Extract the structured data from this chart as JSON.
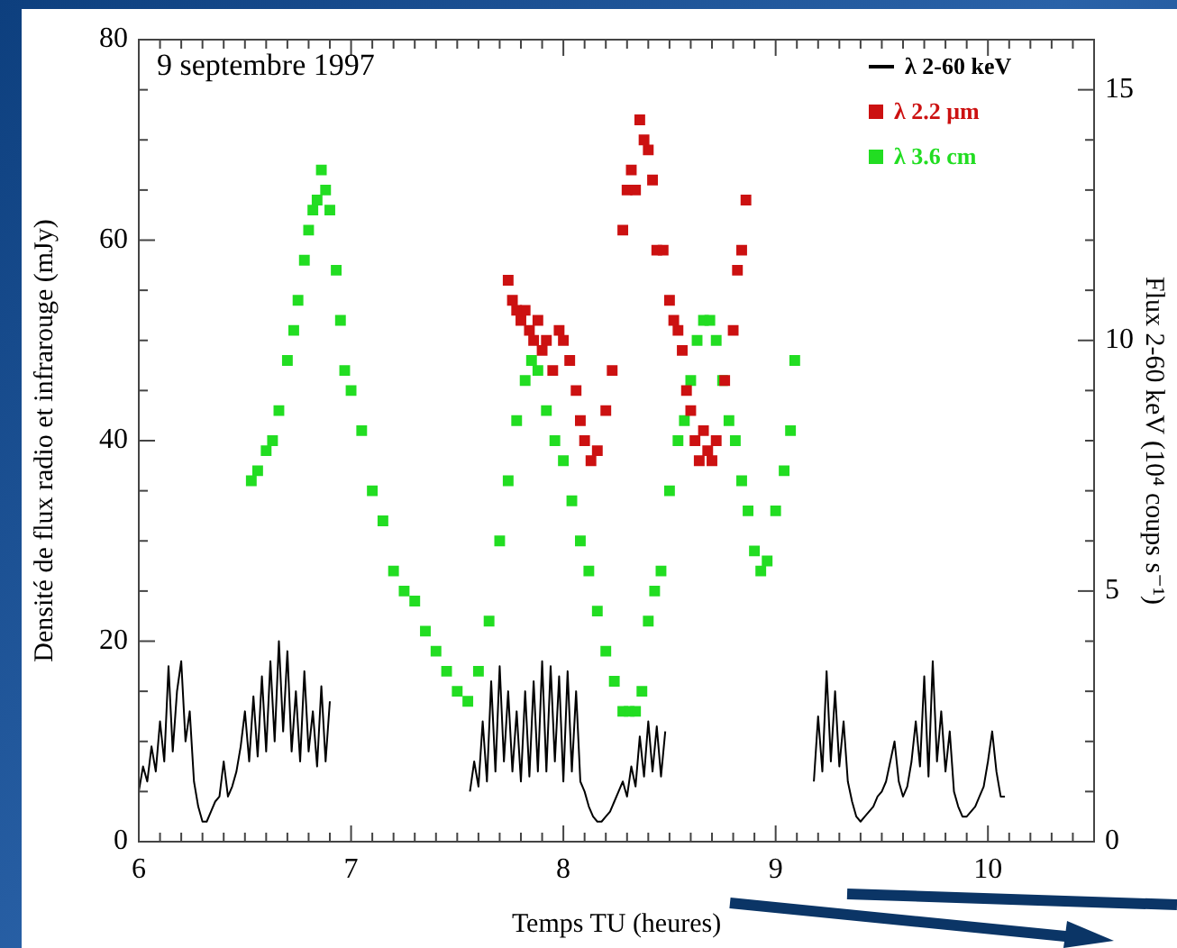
{
  "chart_data": {
    "type": "scatter",
    "title": "9 septembre 1997",
    "xlabel": "Temps TU (heures)",
    "ylabel": "Densité de flux radio et infrarouge (mJy)",
    "y2label": "Flux 2-60 keV (10⁴ coups s⁻¹)",
    "legend": "top right",
    "xlim": [
      6,
      10.5
    ],
    "xticks": [
      6,
      {
        "value": 6.1,
        "label": null
      },
      {
        "value": 6.2,
        "label": null
      },
      {
        "value": 6.3,
        "label": null
      },
      {
        "value": 6.4,
        "label": null
      },
      {
        "value": 6.5,
        "label": null
      },
      {
        "value": 6.6,
        "label": null
      },
      {
        "value": 6.7,
        "label": null
      },
      {
        "value": 6.8,
        "label": null
      },
      {
        "value": 6.9,
        "label": null
      },
      7,
      {
        "value": 7.1,
        "label": null
      },
      {
        "value": 7.2,
        "label": null
      },
      {
        "value": 7.3,
        "label": null
      },
      {
        "value": 7.4,
        "label": null
      },
      {
        "value": 7.5,
        "label": null
      },
      {
        "value": 7.6,
        "label": null
      },
      {
        "value": 7.7,
        "label": null
      },
      {
        "value": 7.8,
        "label": null
      },
      {
        "value": 7.9,
        "label": null
      },
      8,
      {
        "value": 8.1,
        "label": null
      },
      {
        "value": 8.2,
        "label": null
      },
      {
        "value": 8.3,
        "label": null
      },
      {
        "value": 8.4,
        "label": null
      },
      {
        "value": 8.5,
        "label": null
      },
      {
        "value": 8.6,
        "label": null
      },
      {
        "value": 8.7,
        "label": null
      },
      {
        "value": 8.8,
        "label": null
      },
      {
        "value": 8.9,
        "label": null
      },
      9,
      {
        "value": 9.1,
        "label": null
      },
      {
        "value": 9.2,
        "label": null
      },
      {
        "value": 9.3,
        "label": null
      },
      {
        "value": 9.4,
        "label": null
      },
      {
        "value": 9.5,
        "label": null
      },
      {
        "value": 9.6,
        "label": null
      },
      {
        "value": 9.7,
        "label": null
      },
      {
        "value": 9.8,
        "label": null
      },
      {
        "value": 9.9,
        "label": null
      },
      10,
      {
        "value": 10.1,
        "label": null
      },
      {
        "value": 10.2,
        "label": null
      },
      {
        "value": 10.3,
        "label": null
      },
      {
        "value": 10.4,
        "label": null
      },
      {
        "value": 10.5,
        "label": null
      }
    ],
    "ylim": [
      0,
      80
    ],
    "yticks": [
      0,
      {
        "value": 5,
        "label": null
      },
      {
        "value": 10,
        "label": null
      },
      {
        "value": 15,
        "label": null
      },
      20,
      {
        "value": 25,
        "label": null
      },
      {
        "value": 30,
        "label": null
      },
      {
        "value": 35,
        "label": null
      },
      40,
      {
        "value": 45,
        "label": null
      },
      {
        "value": 50,
        "label": null
      },
      {
        "value": 55,
        "label": null
      },
      60,
      {
        "value": 65,
        "label": null
      },
      {
        "value": 70,
        "label": null
      },
      {
        "value": 75,
        "label": null
      },
      80
    ],
    "y2lim": [
      0,
      16
    ],
    "y2ticks": [
      0,
      {
        "value": 1,
        "label": null
      },
      {
        "value": 2,
        "label": null
      },
      {
        "value": 3,
        "label": null
      },
      {
        "value": 4,
        "label": null
      },
      5,
      {
        "value": 6,
        "label": null
      },
      {
        "value": 7,
        "label": null
      },
      {
        "value": 8,
        "label": null
      },
      {
        "value": 9,
        "label": null
      },
      10,
      {
        "value": 11,
        "label": null
      },
      {
        "value": 12,
        "label": null
      },
      {
        "value": 13,
        "label": null
      },
      {
        "value": 14,
        "label": null
      },
      15,
      {
        "value": 16,
        "label": null
      }
    ],
    "series": [
      {
        "name": "λ 2-60 keV",
        "color": "#000000",
        "type": "line",
        "marker": "none",
        "axis": "y2",
        "x": [
          6.0,
          6.02,
          6.04,
          6.06,
          6.08,
          6.1,
          6.12,
          6.14,
          6.16,
          6.18,
          6.2,
          6.22,
          6.24,
          6.26,
          6.28,
          6.3,
          6.32,
          6.34,
          6.36,
          6.38,
          6.4,
          6.42,
          6.44,
          6.46,
          6.48,
          6.5,
          6.52,
          6.54,
          6.56,
          6.58,
          6.6,
          6.62,
          6.64,
          6.66,
          6.68,
          6.7,
          6.72,
          6.74,
          6.76,
          6.78,
          6.8,
          6.82,
          6.84,
          6.86,
          6.88,
          6.9,
          7.2,
          7.56,
          7.58,
          7.6,
          7.62,
          7.64,
          7.66,
          7.68,
          7.7,
          7.72,
          7.74,
          7.76,
          7.78,
          7.8,
          7.82,
          7.84,
          7.86,
          7.88,
          7.9,
          7.92,
          7.94,
          7.96,
          7.98,
          8.0,
          8.02,
          8.04,
          8.06,
          8.08,
          8.1,
          8.12,
          8.14,
          8.16,
          8.18,
          8.2,
          8.22,
          8.24,
          8.26,
          8.28,
          8.3,
          8.32,
          8.34,
          8.36,
          8.38,
          8.4,
          8.42,
          8.44,
          8.46,
          8.48,
          8.8,
          9.18,
          9.2,
          9.22,
          9.24,
          9.26,
          9.28,
          9.3,
          9.32,
          9.34,
          9.36,
          9.38,
          9.4,
          9.42,
          9.44,
          9.46,
          9.48,
          9.5,
          9.52,
          9.54,
          9.56,
          9.58,
          9.6,
          9.62,
          9.64,
          9.66,
          9.68,
          9.7,
          9.72,
          9.74,
          9.76,
          9.78,
          9.8,
          9.82,
          9.84,
          9.86,
          9.88,
          9.9,
          9.92,
          9.94,
          9.96,
          9.98,
          10.0,
          10.02,
          10.04,
          10.06,
          10.08
        ],
        "values": [
          1.0,
          1.5,
          1.2,
          1.9,
          1.4,
          2.4,
          1.6,
          3.5,
          1.8,
          3.0,
          3.6,
          2.0,
          2.6,
          1.2,
          0.7,
          0.4,
          0.4,
          0.6,
          0.8,
          0.9,
          1.6,
          0.9,
          1.1,
          1.4,
          1.9,
          2.6,
          1.6,
          2.9,
          1.7,
          3.3,
          1.8,
          3.6,
          2.0,
          4.0,
          2.2,
          3.8,
          1.8,
          3.0,
          1.6,
          3.4,
          1.8,
          2.6,
          1.5,
          3.1,
          1.6,
          2.8,
          null,
          1.0,
          1.6,
          1.1,
          2.4,
          1.2,
          3.2,
          1.4,
          3.5,
          1.6,
          3.0,
          1.4,
          2.6,
          1.2,
          3.0,
          1.3,
          3.2,
          1.4,
          3.6,
          1.4,
          3.5,
          1.6,
          3.3,
          1.2,
          3.4,
          1.4,
          3.0,
          1.2,
          1.0,
          0.7,
          0.5,
          0.4,
          0.4,
          0.5,
          0.6,
          0.8,
          1.0,
          1.2,
          0.9,
          1.5,
          1.1,
          2.1,
          1.3,
          2.4,
          1.4,
          2.3,
          1.3,
          2.2,
          null,
          1.2,
          2.5,
          1.4,
          3.4,
          1.6,
          3.0,
          1.5,
          2.4,
          1.2,
          0.8,
          0.5,
          0.4,
          0.5,
          0.6,
          0.7,
          0.9,
          1.0,
          1.2,
          1.6,
          2.0,
          1.2,
          0.9,
          1.1,
          1.6,
          2.4,
          1.5,
          3.3,
          1.3,
          3.6,
          1.6,
          2.6,
          1.4,
          2.2,
          1.0,
          0.7,
          0.5,
          0.5,
          0.6,
          0.7,
          0.9,
          1.1,
          1.6,
          2.2,
          1.4,
          0.9,
          0.9
        ]
      },
      {
        "name": "λ 2.2 μm",
        "color": "#cc1111",
        "type": "scatter",
        "marker": "square",
        "x": [
          7.74,
          7.76,
          7.78,
          7.8,
          7.82,
          7.84,
          7.86,
          7.88,
          7.9,
          7.92,
          7.95,
          7.98,
          8.0,
          8.03,
          8.06,
          8.08,
          8.1,
          8.13,
          8.16,
          8.2,
          8.23,
          8.28,
          8.3,
          8.32,
          8.34,
          8.36,
          8.38,
          8.4,
          8.42,
          8.44,
          8.47,
          8.5,
          8.52,
          8.54,
          8.56,
          8.58,
          8.6,
          8.62,
          8.64,
          8.66,
          8.68,
          8.7,
          8.72,
          8.76,
          8.8,
          8.82,
          8.84,
          8.86
        ],
        "values": [
          56,
          54,
          53,
          52,
          53,
          51,
          50,
          52,
          49,
          50,
          47,
          51,
          50,
          48,
          45,
          42,
          40,
          38,
          39,
          43,
          47,
          61,
          65,
          67,
          65,
          72,
          70,
          69,
          66,
          59,
          59,
          54,
          52,
          51,
          49,
          45,
          43,
          40,
          38,
          41,
          39,
          38,
          40,
          46,
          51,
          57,
          59,
          64
        ]
      },
      {
        "name": "λ 3.6 cm",
        "color": "#22dd22",
        "type": "scatter",
        "marker": "square",
        "x": [
          6.53,
          6.56,
          6.6,
          6.63,
          6.66,
          6.7,
          6.73,
          6.75,
          6.78,
          6.8,
          6.82,
          6.84,
          6.86,
          6.88,
          6.9,
          6.93,
          6.95,
          6.97,
          7.0,
          7.05,
          7.1,
          7.15,
          7.2,
          7.25,
          7.3,
          7.35,
          7.4,
          7.45,
          7.5,
          7.55,
          7.6,
          7.65,
          7.7,
          7.74,
          7.78,
          7.82,
          7.85,
          7.88,
          7.92,
          7.96,
          8.0,
          8.04,
          8.08,
          8.12,
          8.16,
          8.2,
          8.24,
          8.28,
          8.31,
          8.34,
          8.37,
          8.4,
          8.43,
          8.46,
          8.5,
          8.54,
          8.57,
          8.6,
          8.63,
          8.66,
          8.69,
          8.72,
          8.75,
          8.78,
          8.81,
          8.84,
          8.87,
          8.9,
          8.93,
          8.96,
          9.0,
          9.04,
          9.07,
          9.09
        ],
        "values": [
          36,
          37,
          39,
          40,
          43,
          48,
          51,
          54,
          58,
          61,
          63,
          64,
          67,
          65,
          63,
          57,
          52,
          47,
          45,
          41,
          35,
          32,
          27,
          25,
          24,
          21,
          19,
          17,
          15,
          14,
          17,
          22,
          30,
          36,
          42,
          46,
          48,
          47,
          43,
          40,
          38,
          34,
          30,
          27,
          23,
          19,
          16,
          13,
          13,
          13,
          15,
          22,
          25,
          27,
          35,
          40,
          42,
          46,
          50,
          52,
          52,
          50,
          46,
          42,
          40,
          36,
          33,
          29,
          27,
          28,
          33,
          37,
          41,
          48
        ]
      }
    ]
  }
}
